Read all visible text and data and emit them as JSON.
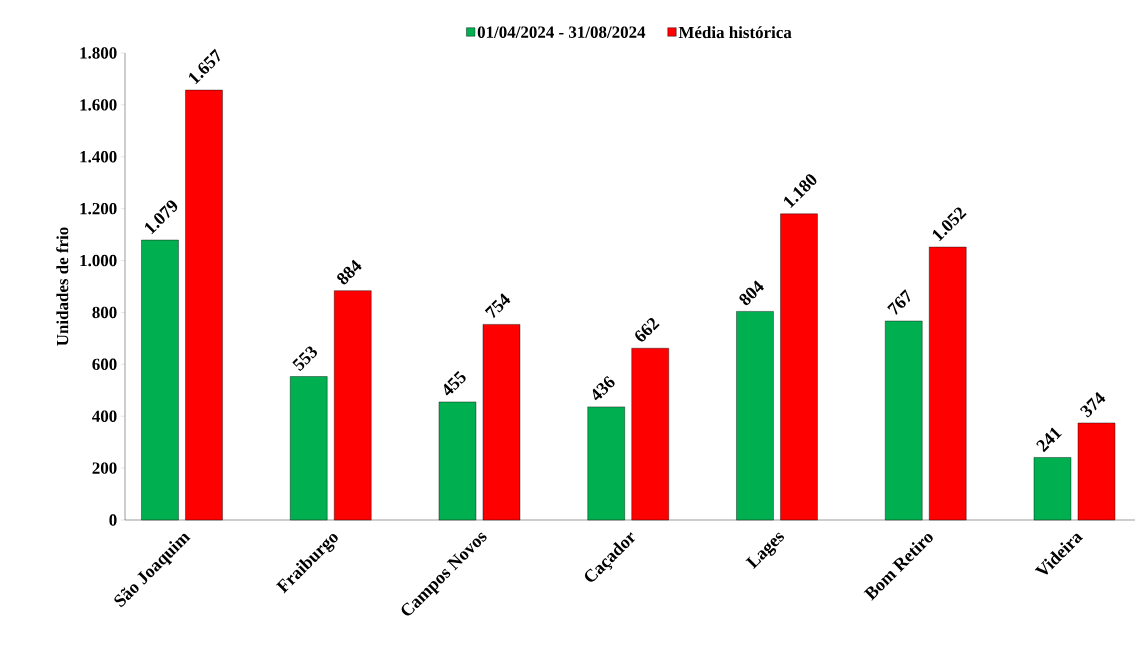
{
  "chart_data": {
    "type": "bar",
    "ylabel": "Unidades de frio",
    "categories": [
      "São Joaquim",
      "Fraiburgo",
      "Campos Novos",
      "Caçador",
      "Lages",
      "Bom Retiro",
      "Videira"
    ],
    "series": [
      {
        "name": "01/04/2024 - 31/08/2024",
        "color": "#00b050",
        "values": [
          1079,
          553,
          455,
          436,
          804,
          767,
          241
        ],
        "value_labels": [
          "1.079",
          "553",
          "455",
          "436",
          "804",
          "767",
          "241"
        ]
      },
      {
        "name": "Média histórica",
        "color": "#ff0000",
        "values": [
          1657,
          884,
          754,
          662,
          1180,
          1052,
          374
        ],
        "value_labels": [
          "1.657",
          "884",
          "754",
          "662",
          "1.180",
          "1.052",
          "374"
        ]
      }
    ],
    "ylim": [
      0,
      1800
    ],
    "yticks": [
      {
        "value": 0,
        "label": "0"
      },
      {
        "value": 200,
        "label": "200"
      },
      {
        "value": 400,
        "label": "400"
      },
      {
        "value": 600,
        "label": "600"
      },
      {
        "value": 800,
        "label": "800"
      },
      {
        "value": 1000,
        "label": "1.000"
      },
      {
        "value": 1200,
        "label": "1.200"
      },
      {
        "value": 1400,
        "label": "1.400"
      },
      {
        "value": 1600,
        "label": "1.600"
      },
      {
        "value": 1800,
        "label": "1.800"
      }
    ],
    "grid": false,
    "legend": "top"
  }
}
